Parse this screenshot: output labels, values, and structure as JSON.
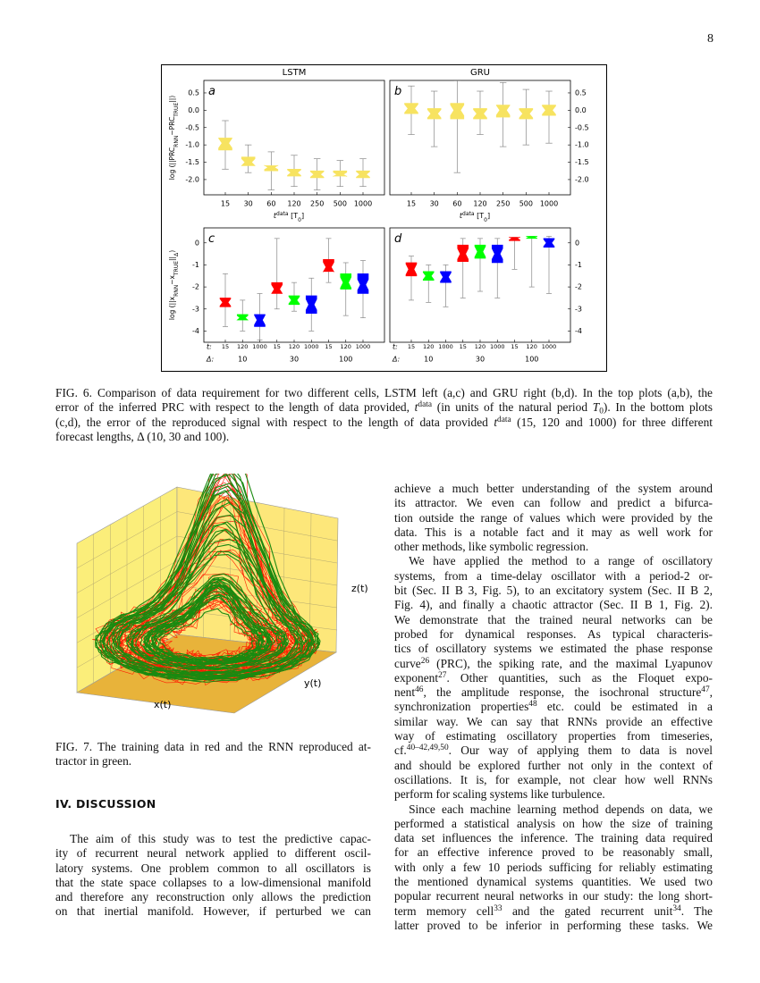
{
  "page_number": "8",
  "chart_data": [
    {
      "type": "box",
      "panel": "a",
      "title": "LSTM",
      "y_axis_side": "left",
      "ylabel": [
        "log (||PRC",
        {
          "sub": "RNN"
        },
        "−PRC",
        {
          "sub": "TRUE"
        },
        "||)"
      ],
      "xlabel": [
        {
          "i": "t"
        },
        {
          "sup": "data"
        },
        "  [T",
        {
          "sub": "0"
        },
        "]"
      ],
      "categories": [
        "15",
        "30",
        "60",
        "120",
        "250",
        "500",
        "1000"
      ],
      "color": "#f7e360",
      "median": [
        -0.95,
        -1.5,
        -1.65,
        -1.8,
        -1.85,
        -1.85,
        -1.85
      ],
      "q1": [
        -1.15,
        -1.6,
        -1.75,
        -1.9,
        -1.95,
        -1.9,
        -1.95
      ],
      "q3": [
        -0.8,
        -1.35,
        -1.6,
        -1.7,
        -1.75,
        -1.75,
        -1.75
      ],
      "whisker_low": [
        -1.7,
        -1.8,
        -2.3,
        -2.2,
        -2.3,
        -2.2,
        -2.2
      ],
      "whisker_high": [
        -0.3,
        -1.0,
        -1.2,
        -1.3,
        -1.4,
        -1.45,
        -1.4
      ],
      "ylim": [
        -2.44,
        0.86
      ],
      "yticks": [
        0.5,
        {
          "value": 0,
          "label": "0.0"
        },
        -0.5,
        {
          "value": -1,
          "label": "-1.0"
        },
        -1.5,
        {
          "value": -2,
          "label": "-2.0"
        }
      ]
    },
    {
      "type": "box",
      "panel": "b",
      "title": "GRU",
      "y_axis_side": "right",
      "xlabel": [
        {
          "i": "t"
        },
        {
          "sup": "data"
        },
        "  [T",
        {
          "sub": "0"
        },
        "]"
      ],
      "categories": [
        "15",
        "30",
        "60",
        "120",
        "250",
        "500",
        "1000"
      ],
      "color": "#f7e360",
      "median": [
        0.05,
        -0.1,
        0.0,
        -0.1,
        0.0,
        -0.1,
        0.0
      ],
      "q1": [
        -0.1,
        -0.25,
        -0.25,
        -0.25,
        -0.2,
        -0.25,
        -0.15
      ],
      "q3": [
        0.2,
        0.05,
        0.2,
        0.05,
        0.15,
        0.05,
        0.15
      ],
      "whisker_low": [
        -0.7,
        -1.05,
        -1.8,
        -0.7,
        -1.05,
        -1.0,
        -0.95
      ],
      "whisker_high": [
        0.7,
        0.55,
        0.85,
        0.55,
        0.8,
        0.6,
        0.55
      ],
      "ylim": [
        -2.44,
        0.86
      ],
      "yticks": [
        0.5,
        {
          "value": 0,
          "label": "0.0"
        },
        -0.5,
        {
          "value": -1,
          "label": "-1.0"
        },
        -1.5,
        {
          "value": -2,
          "label": "-2.0"
        }
      ]
    },
    {
      "type": "box",
      "panel": "c",
      "y_axis_side": "left",
      "ylabel": [
        "log (||x",
        {
          "sub": "RNN"
        },
        "−x",
        {
          "sub": "TRUE"
        },
        "||",
        {
          "sub": "Δ"
        },
        ")"
      ],
      "category_row_label": "t:",
      "group_row_label": "Δ:",
      "categories": [
        "15",
        "120",
        "1000",
        "15",
        "120",
        "1000",
        "15",
        "120",
        "1000"
      ],
      "groups": [
        "10",
        "30",
        "100"
      ],
      "colors": [
        "#ff0000",
        "#00ff00",
        "#0000ff",
        "#ff0000",
        "#00ff00",
        "#0000ff",
        "#ff0000",
        "#00ff00",
        "#0000ff"
      ],
      "median": [
        -2.7,
        -3.4,
        -3.5,
        -2.1,
        -2.6,
        -2.8,
        -1.1,
        -1.8,
        -1.9
      ],
      "q1": [
        -2.9,
        -3.5,
        -3.8,
        -2.3,
        -2.8,
        -3.2,
        -1.3,
        -2.1,
        -2.3
      ],
      "q3": [
        -2.5,
        -3.25,
        -3.25,
        -1.8,
        -2.4,
        -2.4,
        -0.75,
        -1.4,
        -1.4
      ],
      "whisker_low": [
        -3.8,
        -4.0,
        -4.4,
        -3.0,
        -3.1,
        -4.0,
        -1.8,
        -3.3,
        -3.4
      ],
      "whisker_high": [
        -1.4,
        -2.6,
        -2.3,
        0.2,
        -1.8,
        -1.6,
        0.2,
        -0.9,
        -0.8
      ],
      "ylim": [
        -4.51,
        0.68
      ],
      "yticks": [
        0,
        -1,
        -2,
        -3,
        -4
      ]
    },
    {
      "type": "box",
      "panel": "d",
      "y_axis_side": "right",
      "category_row_label": "t:",
      "group_row_label": "Δ:",
      "categories": [
        "15",
        "120",
        "1000",
        "15",
        "120",
        "1000",
        "15",
        "120",
        "1000"
      ],
      "groups": [
        "10",
        "30",
        "100"
      ],
      "colors": [
        "#ff0000",
        "#00ff00",
        "#0000ff",
        "#ff0000",
        "#00ff00",
        "#0000ff",
        "#ff0000",
        "#00ff00",
        "#0000ff"
      ],
      "median": [
        -1.2,
        -1.5,
        -1.55,
        -0.5,
        -0.4,
        -0.5,
        0.2,
        0.25,
        0.0
      ],
      "q1": [
        -1.5,
        -1.7,
        -1.8,
        -0.85,
        -0.7,
        -0.9,
        0.1,
        0.2,
        -0.2
      ],
      "q3": [
        -0.9,
        -1.3,
        -1.3,
        -0.1,
        -0.1,
        -0.1,
        0.25,
        0.3,
        0.2
      ],
      "whisker_low": [
        -2.6,
        -2.7,
        -2.9,
        -2.5,
        -2.2,
        -2.5,
        -1.2,
        -2.0,
        -2.3
      ],
      "whisker_high": [
        -0.6,
        -1.0,
        -1.0,
        0.2,
        0.2,
        0.2,
        0.25,
        0.3,
        0.3
      ],
      "ylim": [
        -4.51,
        0.68
      ],
      "yticks": [
        0,
        -1,
        -2,
        -3,
        -4
      ]
    }
  ],
  "figure6_caption": [
    [
      "FIG. 6. Comparison of data requirement for two different cells, LSTM left (a,c) and GRU right (b,d). In the top plots (a,b), the"
    ],
    [
      "error of the inferred PRC with respect to the length of data provided, ",
      {
        "i": "t"
      },
      {
        "sup": "data"
      },
      " (in units of the natural period ",
      {
        "i": "T"
      },
      {
        "sub": "0"
      },
      "). In the bottom plots"
    ],
    [
      "(c,d), the error of the reproduced signal with respect to the length of data provided ",
      {
        "i": "t"
      },
      {
        "sup": "data"
      },
      " (15, 120 and 1000) for three different"
    ],
    [
      "forecast lengths, Δ (10, 30 and 100)."
    ]
  ],
  "figure7": {
    "x_label": "x(t)",
    "y_label": "y(t)",
    "z_label": "z(t)",
    "caption": [
      [
        "FIG. 7. The training data in red and the RNN reproduced at-"
      ],
      [
        "tractor in green."
      ]
    ]
  },
  "section_heading": "IV.   DISCUSSION",
  "left_column": [
    [
      [
        "The aim of this study was to test the predictive capac-"
      ],
      [
        "ity of recurrent neural network applied to different oscil-"
      ],
      [
        "latory systems. One problem common to all oscillators is"
      ],
      [
        "that the state space collapses to a low-dimensional manifold"
      ],
      [
        "and therefore any reconstruction only allows the prediction"
      ],
      [
        "on that inertial manifold. However, if perturbed we can"
      ]
    ]
  ],
  "right_column": [
    [
      [
        "achieve a much better understanding of the system around"
      ],
      [
        "its attractor. We even can follow and predict a bifurca-"
      ],
      [
        "tion outside the range of values which were provided by the"
      ],
      [
        "data. This is a notable fact and it may as well work for"
      ],
      [
        "other methods, like symbolic regression."
      ]
    ],
    [
      [
        "We have applied the method to a range of oscillatory"
      ],
      [
        "systems, from a time-delay oscillator with a period-2 or-"
      ],
      [
        "bit (Sec. II B 3, Fig. 5), to an excitatory system (Sec. II B 2,"
      ],
      [
        "Fig. 4), and finally a chaotic attractor (Sec. II B 1, Fig. 2)."
      ],
      [
        "We demonstrate that the trained neural networks can be"
      ],
      [
        "probed for dynamical responses. As typical characteris-"
      ],
      [
        "tics of oscillatory systems we estimated the phase response"
      ],
      [
        "curve",
        {
          "sup": "26"
        },
        " (PRC), the spiking rate, and the maximal Lyapunov"
      ],
      [
        "exponent",
        {
          "sup": "27"
        },
        ". Other quantities, such as the Floquet expo-"
      ],
      [
        "nent",
        {
          "sup": "46"
        },
        ", the amplitude response, the isochronal structure",
        {
          "sup": "47"
        },
        ","
      ],
      [
        "synchronization properties",
        {
          "sup": "48"
        },
        " etc. could be estimated in a"
      ],
      [
        "similar way. We can say that RNNs provide an effective"
      ],
      [
        "way of estimating oscillatory properties from timeseries,"
      ],
      [
        "cf.",
        {
          "sup": "40–42,49,50"
        },
        ". Our way of applying them to data is novel"
      ],
      [
        "and should be explored further not only in the context of"
      ],
      [
        "oscillations. It is, for example, not clear how well RNNs"
      ],
      [
        "perform for scaling systems like turbulence."
      ]
    ],
    [
      [
        "Since each machine learning method depends on data, we"
      ],
      [
        "performed a statistical analysis on how the size of training"
      ],
      [
        "data set influences the inference. The training data required"
      ],
      [
        "for an effective inference proved to be reasonably small,"
      ],
      [
        "with only a few 10 periods sufficing for reliably estimating"
      ],
      [
        "the mentioned dynamical systems quantities. We used two"
      ],
      [
        "popular recurrent neural networks in our study: the long short-"
      ],
      [
        "term memory cell",
        {
          "sup": "33"
        },
        " and the gated recurrent unit",
        {
          "sup": "34"
        },
        ". The"
      ],
      [
        "latter proved to be inferior in performing these tasks. We"
      ]
    ]
  ]
}
